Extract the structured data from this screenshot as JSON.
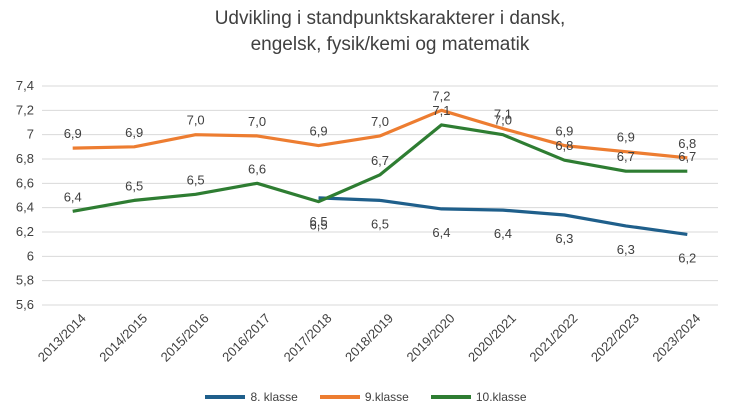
{
  "chart_data": {
    "type": "line",
    "title": "Udvikling i standpunktskarakterer i dansk, engelsk, fysik/kemi og matematik",
    "categories": [
      "2013/2014",
      "2014/2015",
      "2015/2016",
      "2016/2017",
      "2017/2018",
      "2018/2019",
      "2019/2020",
      "2020/2021",
      "2021/2022",
      "2022/2023",
      "2023/2024"
    ],
    "ylim": [
      5.6,
      7.4
    ],
    "yticks": [
      5.6,
      5.8,
      6,
      6.2,
      6.4,
      6.6,
      6.8,
      7,
      7.2,
      7.4
    ],
    "ytick_labels": [
      "5,6",
      "5,8",
      "6",
      "6,2",
      "6,4",
      "6,6",
      "6,8",
      "7",
      "7,2",
      "7,4"
    ],
    "grid": true,
    "legend": "bottom",
    "series": [
      {
        "name": "8. klasse",
        "color": "#1f5f8b",
        "values": [
          null,
          null,
          null,
          null,
          6.48,
          6.46,
          6.39,
          6.38,
          6.34,
          6.25,
          6.18
        ],
        "labels": [
          "",
          "",
          "",
          "",
          "6,5",
          "6,5",
          "6,4",
          "6,4",
          "6,3",
          "6,3",
          "6,2"
        ]
      },
      {
        "name": "9.klasse",
        "color": "#ed7d31",
        "values": [
          6.89,
          6.9,
          7.0,
          6.99,
          6.91,
          6.99,
          7.2,
          7.05,
          6.91,
          6.86,
          6.81
        ],
        "labels": [
          "6,9",
          "6,9",
          "7,0",
          "7,0",
          "6,9",
          "7,0",
          "7,2",
          "7,1",
          "6,9",
          "6,9",
          "6,8"
        ]
      },
      {
        "name": "10.klasse",
        "color": "#2e7d32",
        "values": [
          6.37,
          6.46,
          6.51,
          6.6,
          6.45,
          6.67,
          7.08,
          7.0,
          6.79,
          6.7,
          6.7
        ],
        "labels": [
          "6,4",
          "6,5",
          "6,5",
          "6,6",
          "6,5",
          "6,7",
          "7,1",
          "7,0",
          "6,8",
          "6,7",
          "6,7"
        ]
      }
    ]
  }
}
